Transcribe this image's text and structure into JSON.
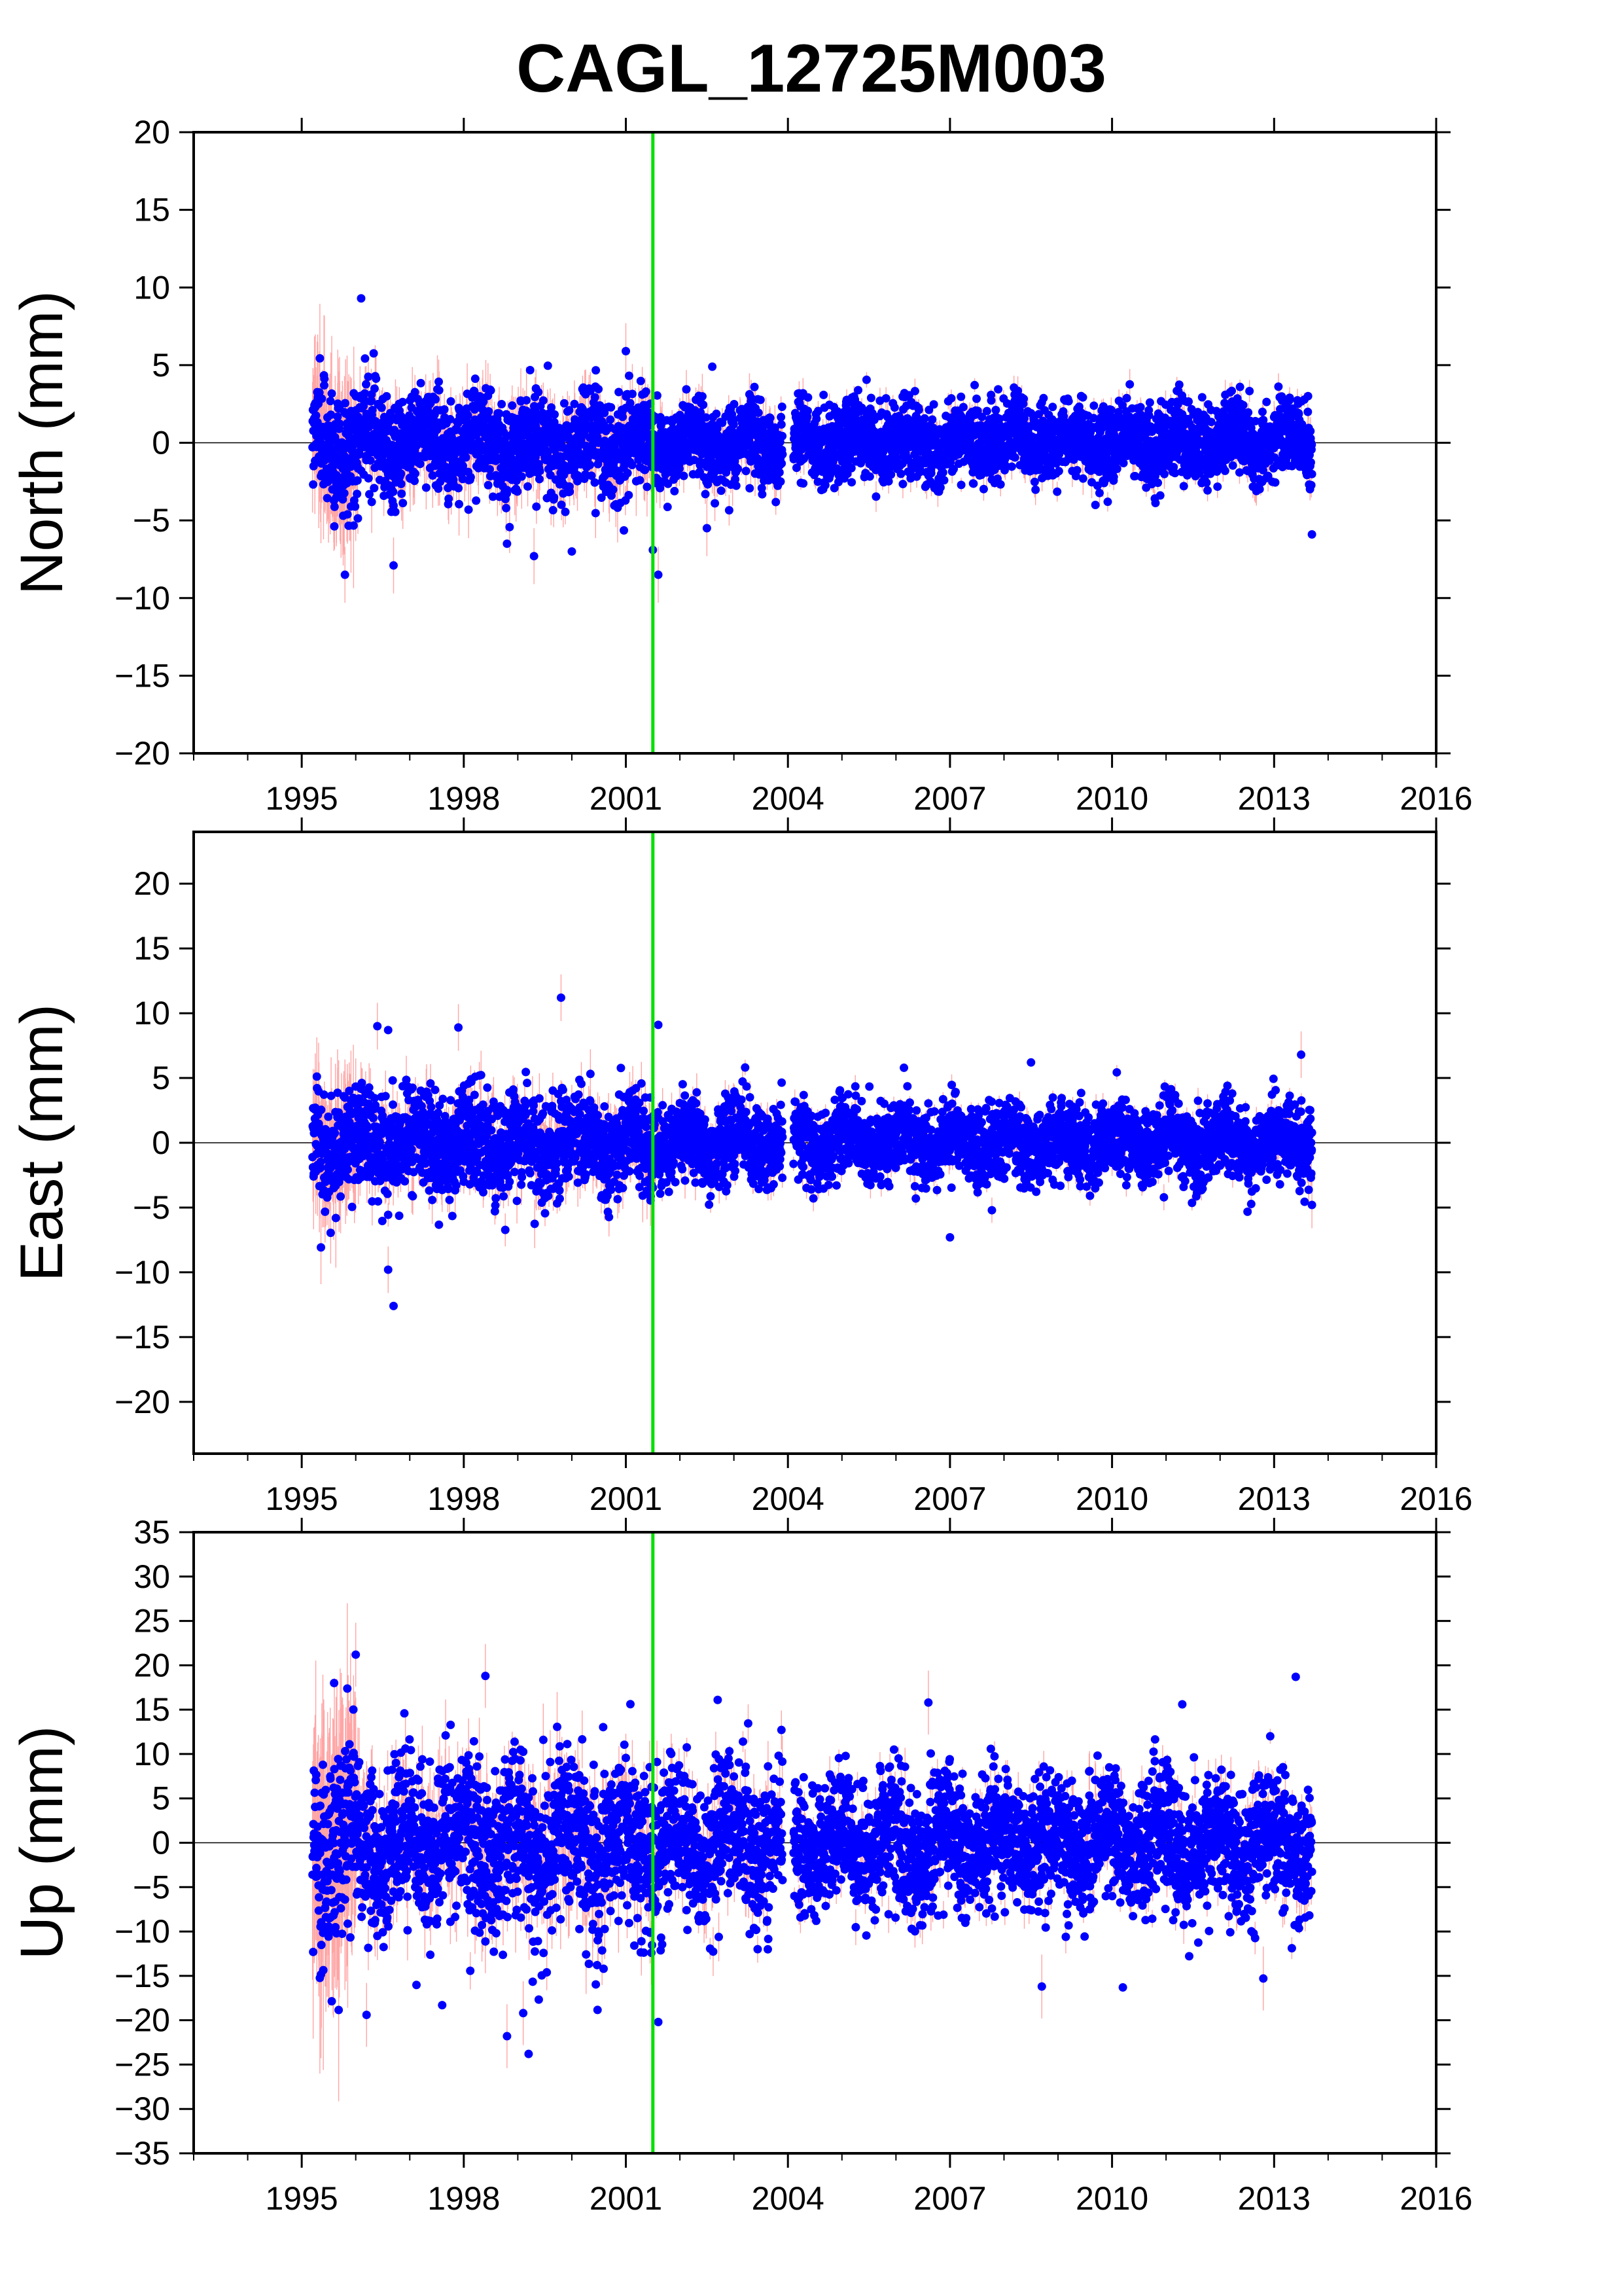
{
  "title": "CAGL_12725M003",
  "colors": {
    "points": "#0000ff",
    "error_bars": "#ff8080",
    "event_line": "#00e000",
    "zero_line": "#000000",
    "frame": "#000000",
    "background": "#ffffff"
  },
  "chart_data": [
    {
      "type": "scatter",
      "ylabel": "North (mm)",
      "xlim": [
        1993,
        2016
      ],
      "ylim": [
        -20,
        20
      ],
      "xticks": [
        "1995",
        "1998",
        "2001",
        "2004",
        "2007",
        "2010",
        "2013",
        "2016"
      ],
      "xtick_values": [
        1995,
        1998,
        2001,
        2004,
        2007,
        2010,
        2013,
        2016
      ],
      "yticks": [
        "20",
        "15",
        "10",
        "5",
        "0",
        "−5",
        "−10",
        "−15",
        "−20"
      ],
      "ytick_values": [
        20,
        15,
        10,
        5,
        0,
        -5,
        -10,
        -15,
        -20
      ],
      "event_line_x": 2001.5,
      "zero_line": true,
      "data_start": 1995.2,
      "data_end": 2013.7,
      "data_gap": [
        2003.9,
        2004.1
      ],
      "error_bars": true,
      "envelope": [
        {
          "start": 1995.2,
          "end": 1996.0,
          "sd": 2.2,
          "err": 3.0
        },
        {
          "start": 1996.0,
          "end": 2001.5,
          "sd": 1.9,
          "err": 1.5
        },
        {
          "start": 2001.5,
          "end": 2003.9,
          "sd": 1.5,
          "err": 1.0
        },
        {
          "start": 2004.1,
          "end": 2013.7,
          "sd": 1.4,
          "err": 0.7
        }
      ],
      "outliers": [
        {
          "x": 1995.8,
          "y": -8.5
        },
        {
          "x": 1996.1,
          "y": 9.3
        },
        {
          "x": 1996.7,
          "y": -7.9
        },
        {
          "x": 1998.8,
          "y": -6.5
        },
        {
          "x": 1999.3,
          "y": -7.3
        },
        {
          "x": 2000.0,
          "y": -7.0
        },
        {
          "x": 2001.6,
          "y": -8.5
        },
        {
          "x": 2001.5,
          "y": -6.9
        },
        {
          "x": 2002.5,
          "y": -5.5
        },
        {
          "x": 2013.7,
          "y": -5.9
        },
        {
          "x": 2001.0,
          "y": 5.9
        },
        {
          "x": 2002.6,
          "y": 4.9
        }
      ]
    },
    {
      "type": "scatter",
      "ylabel": "East (mm)",
      "xlim": [
        1993,
        2016
      ],
      "ylim": [
        -24,
        24
      ],
      "xticks": [
        "1995",
        "1998",
        "2001",
        "2004",
        "2007",
        "2010",
        "2013",
        "2016"
      ],
      "xtick_values": [
        1995,
        1998,
        2001,
        2004,
        2007,
        2010,
        2013,
        2016
      ],
      "yticks": [
        "20",
        "15",
        "10",
        "5",
        "0",
        "−5",
        "−10",
        "−15",
        "−20"
      ],
      "ytick_values": [
        20,
        15,
        10,
        5,
        0,
        -5,
        -10,
        -15,
        -20
      ],
      "event_line_x": 2001.5,
      "zero_line": true,
      "data_start": 1995.2,
      "data_end": 2013.7,
      "data_gap": [
        2003.9,
        2004.1
      ],
      "error_bars": true,
      "envelope": [
        {
          "start": 1995.2,
          "end": 1996.0,
          "sd": 2.4,
          "err": 2.8
        },
        {
          "start": 1996.0,
          "end": 2001.5,
          "sd": 2.2,
          "err": 1.5
        },
        {
          "start": 2001.5,
          "end": 2003.9,
          "sd": 1.8,
          "err": 1.0
        },
        {
          "start": 2004.1,
          "end": 2013.7,
          "sd": 1.7,
          "err": 0.7
        }
      ],
      "outliers": [
        {
          "x": 1999.8,
          "y": 11.2
        },
        {
          "x": 2001.6,
          "y": 9.1
        },
        {
          "x": 1996.4,
          "y": 9.0
        },
        {
          "x": 1996.6,
          "y": 8.7
        },
        {
          "x": 1997.9,
          "y": 8.9
        },
        {
          "x": 1996.7,
          "y": -12.6
        },
        {
          "x": 1996.6,
          "y": -9.8
        },
        {
          "x": 2007.0,
          "y": -7.3
        },
        {
          "x": 2013.7,
          "y": -4.8
        },
        {
          "x": 2008.5,
          "y": 6.2
        },
        {
          "x": 2013.5,
          "y": 6.8
        }
      ]
    },
    {
      "type": "scatter",
      "ylabel": "Up (mm)",
      "xlim": [
        1993,
        2016
      ],
      "ylim": [
        -35,
        35
      ],
      "xticks": [
        "1995",
        "1998",
        "2001",
        "2004",
        "2007",
        "2010",
        "2013",
        "2016"
      ],
      "xtick_values": [
        1995,
        1998,
        2001,
        2004,
        2007,
        2010,
        2013,
        2016
      ],
      "yticks": [
        "35",
        "30",
        "25",
        "20",
        "15",
        "10",
        "5",
        "0",
        "−5",
        "−10",
        "−15",
        "−20",
        "−25",
        "−30",
        "−35"
      ],
      "ytick_values": [
        35,
        30,
        25,
        20,
        15,
        10,
        5,
        0,
        -5,
        -10,
        -15,
        -20,
        -25,
        -30,
        -35
      ],
      "event_line_x": 2001.5,
      "zero_line": true,
      "data_start": 1995.2,
      "data_end": 2013.7,
      "data_gap": [
        2003.9,
        2004.1
      ],
      "error_bars": true,
      "envelope": [
        {
          "start": 1995.2,
          "end": 1996.0,
          "sd": 7.0,
          "err": 9.0
        },
        {
          "start": 1996.0,
          "end": 2001.5,
          "sd": 5.5,
          "err": 3.0
        },
        {
          "start": 2001.5,
          "end": 2003.9,
          "sd": 4.8,
          "err": 2.0
        },
        {
          "start": 2004.1,
          "end": 2013.7,
          "sd": 4.2,
          "err": 1.5
        }
      ],
      "outliers": [
        {
          "x": 1996.0,
          "y": 21.2
        },
        {
          "x": 1995.6,
          "y": 18.0
        },
        {
          "x": 1998.4,
          "y": 18.8
        },
        {
          "x": 2013.4,
          "y": 18.7
        },
        {
          "x": 1998.8,
          "y": -21.8
        },
        {
          "x": 1999.2,
          "y": -23.8
        },
        {
          "x": 1999.1,
          "y": -19.2
        },
        {
          "x": 2001.6,
          "y": -20.2
        },
        {
          "x": 1996.2,
          "y": -19.4
        },
        {
          "x": 1997.6,
          "y": -18.3
        },
        {
          "x": 2008.7,
          "y": -16.2
        },
        {
          "x": 2010.2,
          "y": -16.3
        },
        {
          "x": 2012.8,
          "y": -15.3
        },
        {
          "x": 2002.7,
          "y": 16.1
        },
        {
          "x": 2006.6,
          "y": 15.8
        },
        {
          "x": 2011.3,
          "y": 15.6
        }
      ]
    }
  ]
}
